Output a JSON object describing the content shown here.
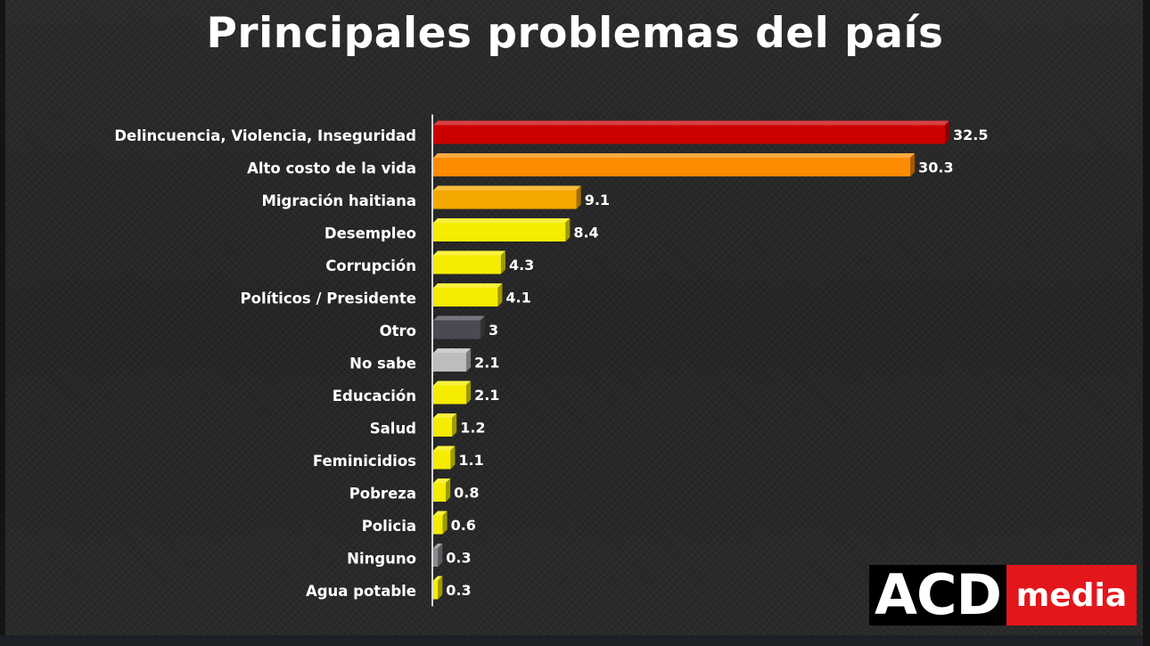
{
  "chart_data": {
    "type": "bar",
    "orientation": "horizontal",
    "title": "Principales problemas del país",
    "categories": [
      "Delincuencia, Violencia, Inseguridad",
      "Alto costo de la vida",
      "Migración haitiana",
      "Desempleo",
      "Corrupción",
      "Políticos / Presidente",
      "Otro",
      "No sabe",
      "Educación",
      "Salud",
      "Feminicidios",
      "Pobreza",
      "Policia",
      "Ninguno",
      "Agua potable"
    ],
    "values": [
      32.5,
      30.3,
      9.1,
      8.4,
      4.3,
      4.1,
      3,
      2.1,
      2.1,
      1.2,
      1.1,
      0.8,
      0.6,
      0.3,
      0.3
    ],
    "value_labels": [
      "32.5",
      "30.3",
      "9.1",
      "8.4",
      "4.3",
      "4.1",
      "3",
      "2.1",
      "2.1",
      "1.2",
      "1.1",
      "0.8",
      "0.6",
      "0.3",
      "0.3"
    ],
    "colors": [
      "#cc0000",
      "#ff8c00",
      "#f5a800",
      "#f5ec00",
      "#f5ec00",
      "#f5ec00",
      "#4a4a52",
      "#bdbdbd",
      "#f5ec00",
      "#f5ec00",
      "#f5ec00",
      "#f5ec00",
      "#f5ec00",
      "#8a8a90",
      "#f5ec00"
    ],
    "xlim": [
      0,
      32.5
    ],
    "grid": false,
    "legend": false,
    "style": "3d-bars"
  },
  "logo": {
    "part1": "ACD",
    "part2": "media"
  },
  "colors": {
    "background": "#282828",
    "text": "#ffffff",
    "logo_red": "#e3161b"
  }
}
